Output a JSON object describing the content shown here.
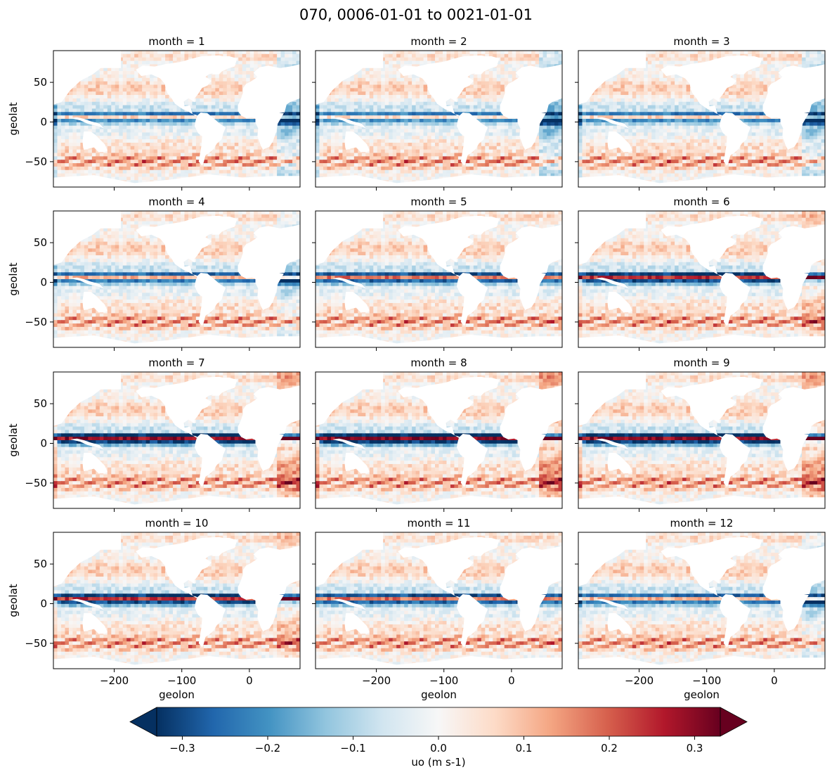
{
  "figure": {
    "title": "070, 0006-01-01 to 0021-01-01"
  },
  "chart_data": {
    "type": "heatmap",
    "variable": "uo",
    "colormap": "RdBu_r",
    "x_label": "geolon",
    "y_label": "geolat",
    "x_range": [
      -290,
      75
    ],
    "y_range": [
      -82,
      90
    ],
    "x_ticks": [
      -200,
      -100,
      0
    ],
    "x_tick_labels": [
      "−200",
      "−100",
      "0"
    ],
    "y_ticks": [
      50,
      0,
      -50
    ],
    "y_tick_labels": [
      "50",
      "0",
      "−50"
    ],
    "panels": [
      {
        "title": "month = 1"
      },
      {
        "title": "month = 2"
      },
      {
        "title": "month = 3"
      },
      {
        "title": "month = 4"
      },
      {
        "title": "month = 5"
      },
      {
        "title": "month = 6"
      },
      {
        "title": "month = 7"
      },
      {
        "title": "month = 8"
      },
      {
        "title": "month = 9"
      },
      {
        "title": "month = 10"
      },
      {
        "title": "month = 11"
      },
      {
        "title": "month = 12"
      }
    ],
    "colorbar": {
      "label": "uo (m s-1)",
      "range": [
        -0.33,
        0.33
      ],
      "extend": "both",
      "ticks": [
        -0.3,
        -0.2,
        -0.1,
        0.0,
        0.1,
        0.2,
        0.3
      ],
      "tick_labels": [
        "−0.3",
        "−0.2",
        "−0.1",
        "0.0",
        "0.1",
        "0.2",
        "0.3"
      ],
      "stops": [
        "#053061",
        "#2166ac",
        "#4393c3",
        "#92c5de",
        "#d1e5f0",
        "#f7f7f7",
        "#fddbc7",
        "#f4a582",
        "#d6604d",
        "#b2182b",
        "#67001f"
      ]
    }
  }
}
